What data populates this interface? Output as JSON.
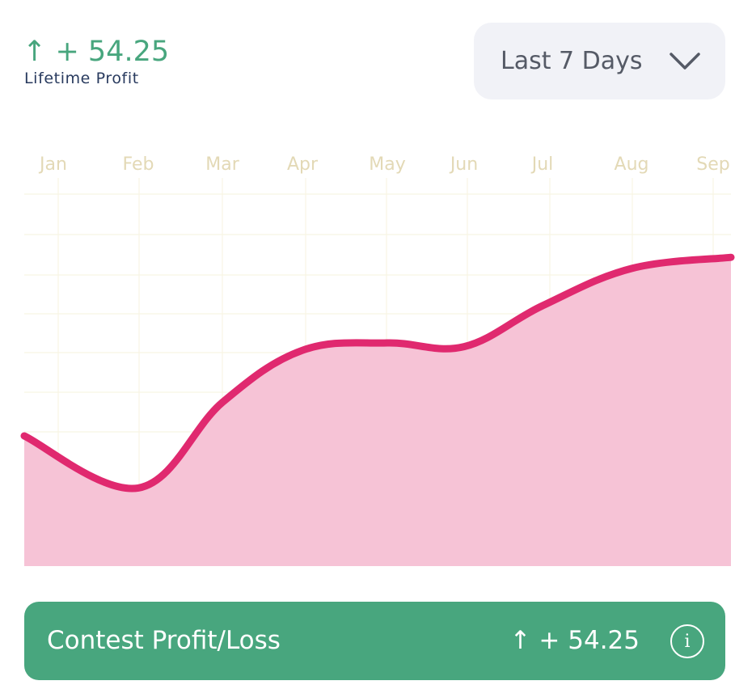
{
  "summary": {
    "profit_value": "↑ + 54.25",
    "profit_label": "Lifetime Profit"
  },
  "range_select": {
    "selected": "Last 7 Days",
    "icon": "chevron-down-icon"
  },
  "chart_data": {
    "type": "area",
    "categories": [
      "Jan",
      "Feb",
      "Mar",
      "Apr",
      "May",
      "Jun",
      "Jul",
      "Aug",
      "Sep"
    ],
    "values": [
      35,
      21,
      44,
      58,
      60,
      59,
      70,
      80,
      83
    ],
    "ylim": [
      0,
      100
    ],
    "grid": true,
    "colors": {
      "line": "#e0296f",
      "fill": "#f6c3d6",
      "grid": "#f8f5e4",
      "month_label": "#e3d9b6"
    }
  },
  "footer": {
    "title": "Contest Profit/Loss",
    "value": "↑ + 54.25",
    "info_icon": "info-icon"
  },
  "colors": {
    "accent_green": "#48a67e",
    "label_navy": "#283a5e",
    "select_bg": "#f1f2f7"
  }
}
